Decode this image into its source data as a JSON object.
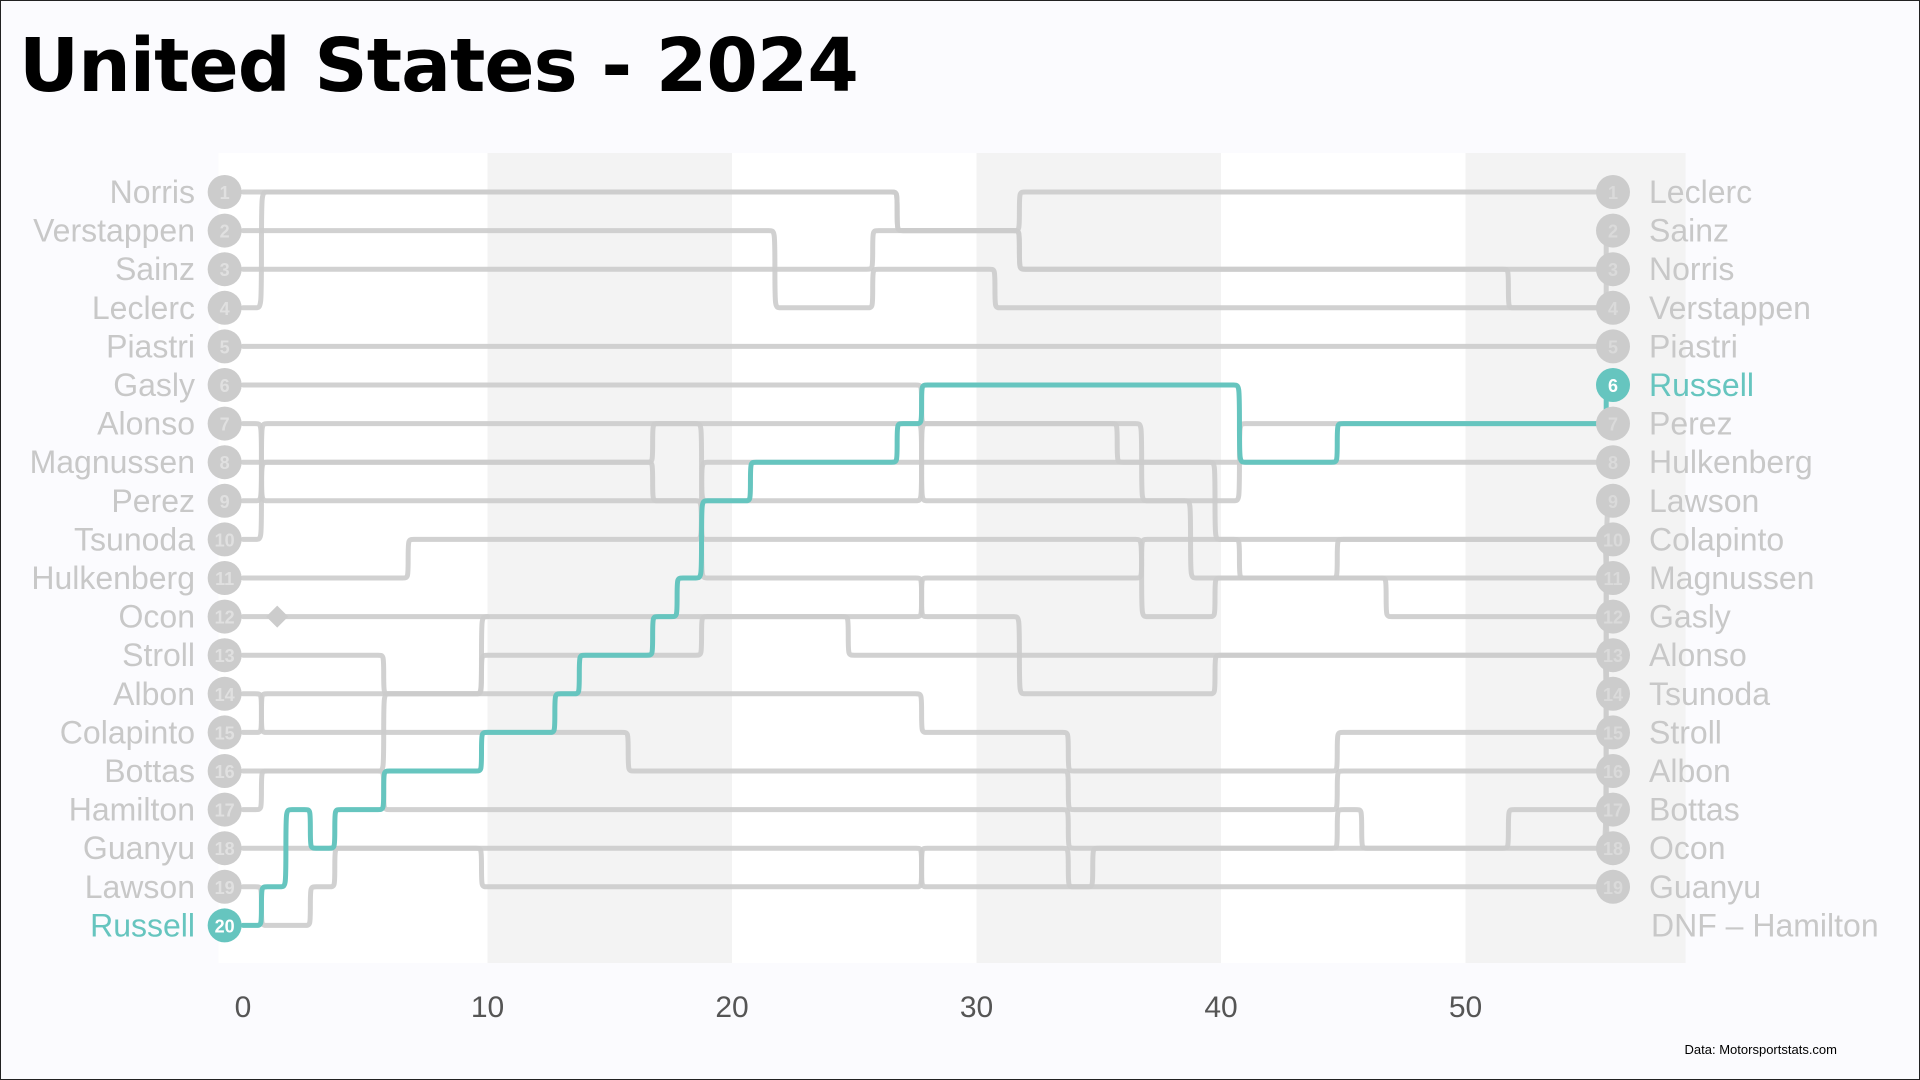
{
  "title": "United States - 2024",
  "source": "Data: Motorsportstats.com",
  "chart_data": {
    "type": "line",
    "title": "United States - 2024",
    "xlabel": "",
    "ylabel": "",
    "xlim": [
      -1,
      59
    ],
    "ylim": [
      20,
      1
    ],
    "x_ticks": [
      0,
      10,
      20,
      30,
      40,
      50
    ],
    "grid": "alternating vertical bands every 10 laps",
    "legend": "none (driver names at start and finish)",
    "highlight_color": "#66c5bf",
    "base_color": "#cccccc",
    "start_order": [
      "Norris",
      "Verstappen",
      "Sainz",
      "Leclerc",
      "Piastri",
      "Gasly",
      "Alonso",
      "Magnussen",
      "Perez",
      "Tsunoda",
      "Hulkenberg",
      "Ocon",
      "Stroll",
      "Albon",
      "Colapinto",
      "Bottas",
      "Hamilton",
      "Guanyu",
      "Lawson",
      "Russell"
    ],
    "finish_order": [
      "Leclerc",
      "Sainz",
      "Norris",
      "Verstappen",
      "Piastri",
      "Russell",
      "Perez",
      "Hulkenberg",
      "Lawson",
      "Colapinto",
      "Magnussen",
      "Gasly",
      "Alonso",
      "Tsunoda",
      "Stroll",
      "Albon",
      "Bottas",
      "Ocon",
      "Guanyu"
    ],
    "dnf_label": "DNF –  Hamilton",
    "highlighted_driver": "Russell",
    "series": [
      {
        "name": "Russell",
        "highlight": true,
        "points": [
          [
            0,
            20
          ],
          [
            1,
            19
          ],
          [
            2,
            17
          ],
          [
            3,
            18
          ],
          [
            4,
            17
          ],
          [
            6,
            16
          ],
          [
            10,
            15
          ],
          [
            13,
            14
          ],
          [
            14,
            13
          ],
          [
            17,
            12
          ],
          [
            18,
            11
          ],
          [
            19,
            9
          ],
          [
            21,
            8
          ],
          [
            27,
            7
          ],
          [
            28,
            6
          ],
          [
            40,
            6
          ],
          [
            41,
            8
          ],
          [
            45,
            7
          ],
          [
            55,
            7
          ],
          [
            56,
            6
          ]
        ]
      },
      {
        "name": "Leclerc",
        "points": [
          [
            0,
            4
          ],
          [
            1,
            1
          ],
          [
            26,
            1
          ],
          [
            27,
            2
          ],
          [
            31,
            2
          ],
          [
            32,
            1
          ],
          [
            56,
            1
          ]
        ]
      },
      {
        "name": "Sainz",
        "points": [
          [
            0,
            3
          ],
          [
            1,
            3
          ],
          [
            25,
            3
          ],
          [
            26,
            2
          ],
          [
            32,
            3
          ],
          [
            56,
            2
          ]
        ]
      },
      {
        "name": "Norris",
        "points": [
          [
            0,
            1
          ],
          [
            1,
            1
          ],
          [
            26,
            1
          ],
          [
            27,
            2
          ],
          [
            31,
            2
          ],
          [
            32,
            3
          ],
          [
            51,
            3
          ],
          [
            52,
            4
          ],
          [
            56,
            3
          ]
        ]
      },
      {
        "name": "Verstappen",
        "points": [
          [
            0,
            2
          ],
          [
            1,
            2
          ],
          [
            21,
            2
          ],
          [
            22,
            4
          ],
          [
            25,
            4
          ],
          [
            26,
            3
          ],
          [
            31,
            4
          ],
          [
            56,
            4
          ]
        ]
      },
      {
        "name": "Piastri",
        "points": [
          [
            0,
            5
          ],
          [
            1,
            5
          ],
          [
            21,
            5
          ],
          [
            22,
            5
          ],
          [
            31,
            5
          ],
          [
            32,
            5
          ],
          [
            56,
            5
          ]
        ]
      },
      {
        "name": "Perez",
        "points": [
          [
            0,
            9
          ],
          [
            1,
            7
          ],
          [
            18,
            7
          ],
          [
            19,
            9
          ],
          [
            27,
            9
          ],
          [
            28,
            7
          ],
          [
            36,
            7
          ],
          [
            37,
            9
          ],
          [
            40,
            9
          ],
          [
            41,
            7
          ],
          [
            56,
            7
          ]
        ]
      },
      {
        "name": "Hulkenberg",
        "points": [
          [
            0,
            11
          ],
          [
            6,
            11
          ],
          [
            7,
            10
          ],
          [
            18,
            10
          ],
          [
            19,
            8
          ],
          [
            27,
            8
          ],
          [
            28,
            8
          ],
          [
            40,
            8
          ],
          [
            41,
            8
          ],
          [
            56,
            8
          ]
        ]
      },
      {
        "name": "Lawson",
        "points": [
          [
            0,
            19
          ],
          [
            1,
            20
          ],
          [
            3,
            19
          ],
          [
            4,
            18
          ],
          [
            9,
            18
          ],
          [
            10,
            19
          ],
          [
            27,
            19
          ],
          [
            28,
            18
          ],
          [
            33,
            18
          ],
          [
            34,
            19
          ],
          [
            35,
            18
          ],
          [
            56,
            9
          ]
        ]
      },
      {
        "name": "Colapinto",
        "points": [
          [
            0,
            15
          ],
          [
            1,
            14
          ],
          [
            9,
            14
          ],
          [
            10,
            13
          ],
          [
            18,
            13
          ],
          [
            19,
            12
          ],
          [
            27,
            12
          ],
          [
            28,
            11
          ],
          [
            36,
            11
          ],
          [
            37,
            10
          ],
          [
            56,
            10
          ]
        ]
      },
      {
        "name": "Magnussen",
        "points": [
          [
            0,
            8
          ],
          [
            1,
            8
          ],
          [
            16,
            8
          ],
          [
            17,
            9
          ],
          [
            18,
            9
          ],
          [
            19,
            10
          ],
          [
            27,
            10
          ],
          [
            28,
            10
          ],
          [
            36,
            10
          ],
          [
            37,
            12
          ],
          [
            40,
            11
          ],
          [
            56,
            11
          ]
        ]
      },
      {
        "name": "Gasly",
        "points": [
          [
            0,
            6
          ],
          [
            18,
            6
          ],
          [
            19,
            6
          ],
          [
            26,
            6
          ],
          [
            27,
            6
          ],
          [
            28,
            7
          ],
          [
            36,
            8
          ],
          [
            37,
            8
          ],
          [
            40,
            10
          ],
          [
            41,
            11
          ],
          [
            46,
            11
          ],
          [
            47,
            12
          ],
          [
            56,
            12
          ]
        ]
      },
      {
        "name": "Alonso",
        "points": [
          [
            0,
            7
          ],
          [
            1,
            9
          ],
          [
            18,
            9
          ],
          [
            19,
            11
          ],
          [
            27,
            11
          ],
          [
            28,
            12
          ],
          [
            31,
            12
          ],
          [
            32,
            14
          ],
          [
            40,
            13
          ],
          [
            41,
            13
          ],
          [
            56,
            13
          ]
        ]
      },
      {
        "name": "Tsunoda",
        "points": [
          [
            0,
            10
          ],
          [
            1,
            8
          ],
          [
            16,
            8
          ],
          [
            17,
            7
          ],
          [
            27,
            7
          ],
          [
            28,
            9
          ],
          [
            38,
            9
          ],
          [
            39,
            11
          ],
          [
            45,
            10
          ],
          [
            46,
            10
          ],
          [
            56,
            14
          ]
        ]
      },
      {
        "name": "Stroll",
        "points": [
          [
            0,
            13
          ],
          [
            1,
            13
          ],
          [
            5,
            13
          ],
          [
            6,
            14
          ],
          [
            18,
            14
          ],
          [
            19,
            14
          ],
          [
            27,
            14
          ],
          [
            28,
            15
          ],
          [
            33,
            15
          ],
          [
            34,
            16
          ],
          [
            44,
            16
          ],
          [
            45,
            15
          ],
          [
            56,
            15
          ]
        ]
      },
      {
        "name": "Albon",
        "points": [
          [
            0,
            14
          ],
          [
            1,
            15
          ],
          [
            5,
            15
          ],
          [
            6,
            15
          ],
          [
            15,
            15
          ],
          [
            16,
            16
          ],
          [
            27,
            16
          ],
          [
            28,
            16
          ],
          [
            33,
            16
          ],
          [
            34,
            17
          ],
          [
            44,
            17
          ],
          [
            45,
            16
          ],
          [
            56,
            16
          ]
        ]
      },
      {
        "name": "Bottas",
        "points": [
          [
            0,
            16
          ],
          [
            1,
            16
          ],
          [
            5,
            16
          ],
          [
            6,
            17
          ],
          [
            15,
            17
          ],
          [
            16,
            17
          ],
          [
            27,
            17
          ],
          [
            28,
            17
          ],
          [
            33,
            17
          ],
          [
            34,
            18
          ],
          [
            45,
            17
          ],
          [
            46,
            18
          ],
          [
            51,
            18
          ],
          [
            52,
            17
          ],
          [
            56,
            17
          ]
        ]
      },
      {
        "name": "Ocon",
        "points": [
          [
            0,
            12
          ],
          [
            1,
            12
          ],
          [
            5,
            12
          ],
          [
            6,
            12
          ],
          [
            24,
            12
          ],
          [
            25,
            13
          ],
          [
            27,
            13
          ],
          [
            28,
            13
          ],
          [
            33,
            13
          ],
          [
            34,
            13
          ],
          [
            56,
            18
          ]
        ]
      },
      {
        "name": "Guanyu",
        "points": [
          [
            0,
            18
          ],
          [
            1,
            18
          ],
          [
            9,
            18
          ],
          [
            10,
            18
          ],
          [
            27,
            18
          ],
          [
            28,
            19
          ],
          [
            33,
            19
          ],
          [
            34,
            19
          ],
          [
            56,
            19
          ]
        ]
      },
      {
        "name": "Hamilton",
        "dnf": true,
        "points": [
          [
            0,
            17
          ],
          [
            1,
            16
          ],
          [
            5,
            16
          ],
          [
            6,
            14
          ],
          [
            9,
            14
          ],
          [
            10,
            12
          ]
        ]
      }
    ]
  }
}
